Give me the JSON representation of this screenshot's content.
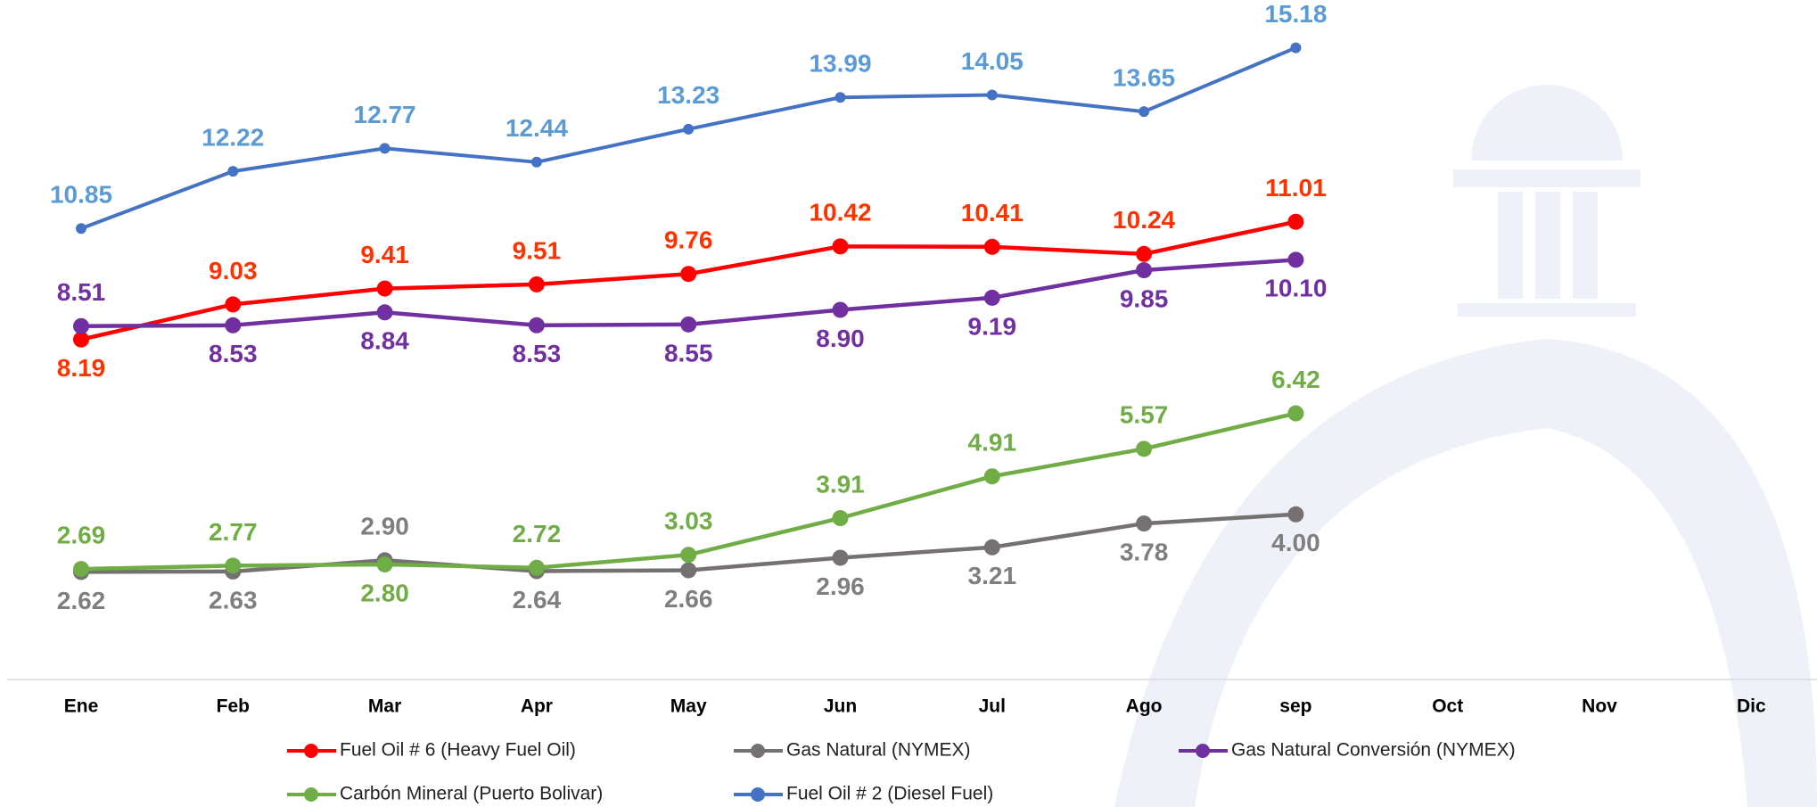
{
  "chart_data": {
    "type": "line",
    "categories": [
      "Ene",
      "Feb",
      "Mar",
      "Apr",
      "May",
      "Jun",
      "Jul",
      "Ago",
      "sep",
      "Oct",
      "Nov",
      "Dic"
    ],
    "series": [
      {
        "name": "Fuel Oil # 6 (Heavy Fuel Oil)",
        "color": "#ff0000",
        "label_color": "#ff3300",
        "values": [
          8.19,
          9.03,
          9.41,
          9.51,
          9.76,
          10.42,
          10.41,
          10.24,
          11.01,
          null,
          null,
          null
        ],
        "value_labels": [
          "8.19",
          "9.03",
          "9.41",
          "9.51",
          "9.76",
          "10.42",
          "10.41",
          "10.24",
          "11.01",
          null,
          null,
          null
        ]
      },
      {
        "name": "Gas Natural (NYMEX)",
        "color": "#767171",
        "label_color": "#7f7f7f",
        "values": [
          2.62,
          2.63,
          2.9,
          2.64,
          2.66,
          2.96,
          3.21,
          3.78,
          4.0,
          null,
          null,
          null
        ],
        "value_labels": [
          "2.62",
          "2.63",
          "2.90",
          "2.64",
          "2.66",
          "2.96",
          "3.21",
          "3.78",
          "4.00",
          null,
          null,
          null
        ]
      },
      {
        "name": "Gas Natural Conversión (NYMEX)",
        "color": "#7030a0",
        "label_color": "#7030a0",
        "values": [
          8.51,
          8.53,
          8.84,
          8.53,
          8.55,
          8.9,
          9.19,
          9.85,
          10.1,
          null,
          null,
          null
        ],
        "value_labels": [
          "8.51",
          "8.53",
          "8.84",
          "8.53",
          "8.55",
          "8.90",
          "9.19",
          "9.85",
          "10.10",
          null,
          null,
          null
        ]
      },
      {
        "name": "Carbón Mineral (Puerto Bolivar)",
        "color": "#70ad47",
        "label_color": "#70ad47",
        "values": [
          2.69,
          2.77,
          2.8,
          2.72,
          3.03,
          3.91,
          4.91,
          5.57,
          6.42,
          null,
          null,
          null
        ],
        "value_labels": [
          "2.69",
          "2.77",
          "2.80",
          "2.72",
          "3.03",
          "3.91",
          "4.91",
          "5.57",
          "6.42",
          null,
          null,
          null
        ]
      },
      {
        "name": "Fuel Oil # 2 (Diesel Fuel)",
        "color": "#4472c4",
        "label_color": "#5b9bd5",
        "values": [
          10.85,
          12.22,
          12.77,
          12.44,
          13.23,
          13.99,
          14.05,
          13.65,
          15.18,
          null,
          null,
          null
        ],
        "value_labels": [
          "10.85",
          "12.22",
          "12.77",
          "12.44",
          "13.23",
          "13.99",
          "14.05",
          "13.65",
          "15.18",
          null,
          null,
          null
        ]
      }
    ],
    "legend": "bottom"
  }
}
